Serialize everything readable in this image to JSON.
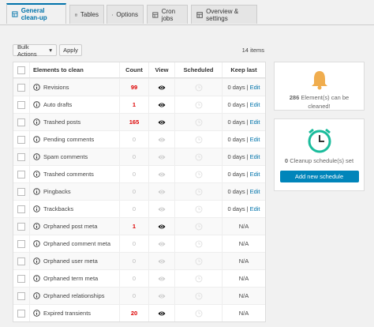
{
  "tabs": [
    "General clean-up",
    "Tables",
    "Options",
    "Cron jobs",
    "Overview & settings"
  ],
  "toolbar": {
    "bulk_actions": "Bulk Actions",
    "apply": "Apply",
    "items": "14 items"
  },
  "table": {
    "headers": [
      "Elements to clean",
      "Count",
      "View",
      "Scheduled",
      "Keep last"
    ],
    "separator": "|",
    "rows": [
      {
        "name": "Revisions",
        "count": 99,
        "keep_last": "0 days",
        "action": "Edit"
      },
      {
        "name": "Auto drafts",
        "count": 1,
        "keep_last": "0 days",
        "action": "Edit"
      },
      {
        "name": "Trashed posts",
        "count": 165,
        "keep_last": "0 days",
        "action": "Edit"
      },
      {
        "name": "Pending comments",
        "count": 0,
        "keep_last": "0 days",
        "action": "Edit"
      },
      {
        "name": "Spam comments",
        "count": 0,
        "keep_last": "0 days",
        "action": "Edit"
      },
      {
        "name": "Trashed comments",
        "count": 0,
        "keep_last": "0 days",
        "action": "Edit"
      },
      {
        "name": "Pingbacks",
        "count": 0,
        "keep_last": "0 days",
        "action": "Edit"
      },
      {
        "name": "Trackbacks",
        "count": 0,
        "keep_last": "0 days",
        "action": "Edit"
      },
      {
        "name": "Orphaned post meta",
        "count": 1,
        "keep_last": "N/A"
      },
      {
        "name": "Orphaned comment meta",
        "count": 0,
        "keep_last": "N/A"
      },
      {
        "name": "Orphaned user meta",
        "count": 0,
        "keep_last": "N/A"
      },
      {
        "name": "Orphaned term meta",
        "count": 0,
        "keep_last": "N/A"
      },
      {
        "name": "Orphaned relationships",
        "count": 0,
        "keep_last": "N/A"
      },
      {
        "name": "Expired transients",
        "count": 20,
        "keep_last": "N/A"
      }
    ]
  },
  "sidebar": {
    "cleanable": {
      "count": 286,
      "text": "Element(s) can be cleaned!"
    },
    "schedules": {
      "count": 0,
      "text": "Cleanup schedule(s) set",
      "button": "Add new schedule"
    }
  }
}
